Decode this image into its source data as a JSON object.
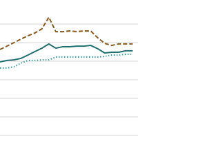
{
  "chart_data": {
    "type": "line",
    "x": [
      0,
      1,
      2,
      3,
      4,
      5,
      6,
      7,
      8,
      9,
      10,
      11,
      12,
      13,
      14,
      15,
      16,
      17,
      18,
      19
    ],
    "xlim": [
      0,
      19
    ],
    "ylim": [
      0,
      7
    ],
    "yticks": [
      0,
      1,
      2,
      3,
      4,
      5,
      6
    ],
    "grid": true,
    "series": [
      {
        "color": "#8b5a1a",
        "dash": "dashed",
        "values": [
          4.63,
          4.81,
          5.0,
          5.19,
          5.37,
          5.52,
          5.74,
          6.37,
          5.59,
          5.59,
          5.63,
          5.59,
          5.63,
          5.63,
          5.26,
          4.96,
          4.85,
          4.93,
          4.93,
          4.93
        ]
      },
      {
        "color": "#1f6f6f",
        "dash": "solid",
        "values": [
          3.96,
          4.04,
          4.07,
          4.15,
          4.33,
          4.52,
          4.7,
          4.93,
          4.7,
          4.78,
          4.78,
          4.81,
          4.81,
          4.85,
          4.67,
          4.44,
          4.48,
          4.48,
          4.56,
          4.56
        ]
      },
      {
        "color": "#2a9d8f",
        "dash": "dotted",
        "values": [
          3.63,
          3.63,
          3.7,
          3.89,
          4.04,
          4.04,
          4.07,
          4.07,
          4.22,
          4.22,
          4.22,
          4.22,
          4.22,
          4.22,
          4.22,
          4.26,
          4.33,
          4.33,
          4.37,
          4.37
        ]
      }
    ]
  }
}
